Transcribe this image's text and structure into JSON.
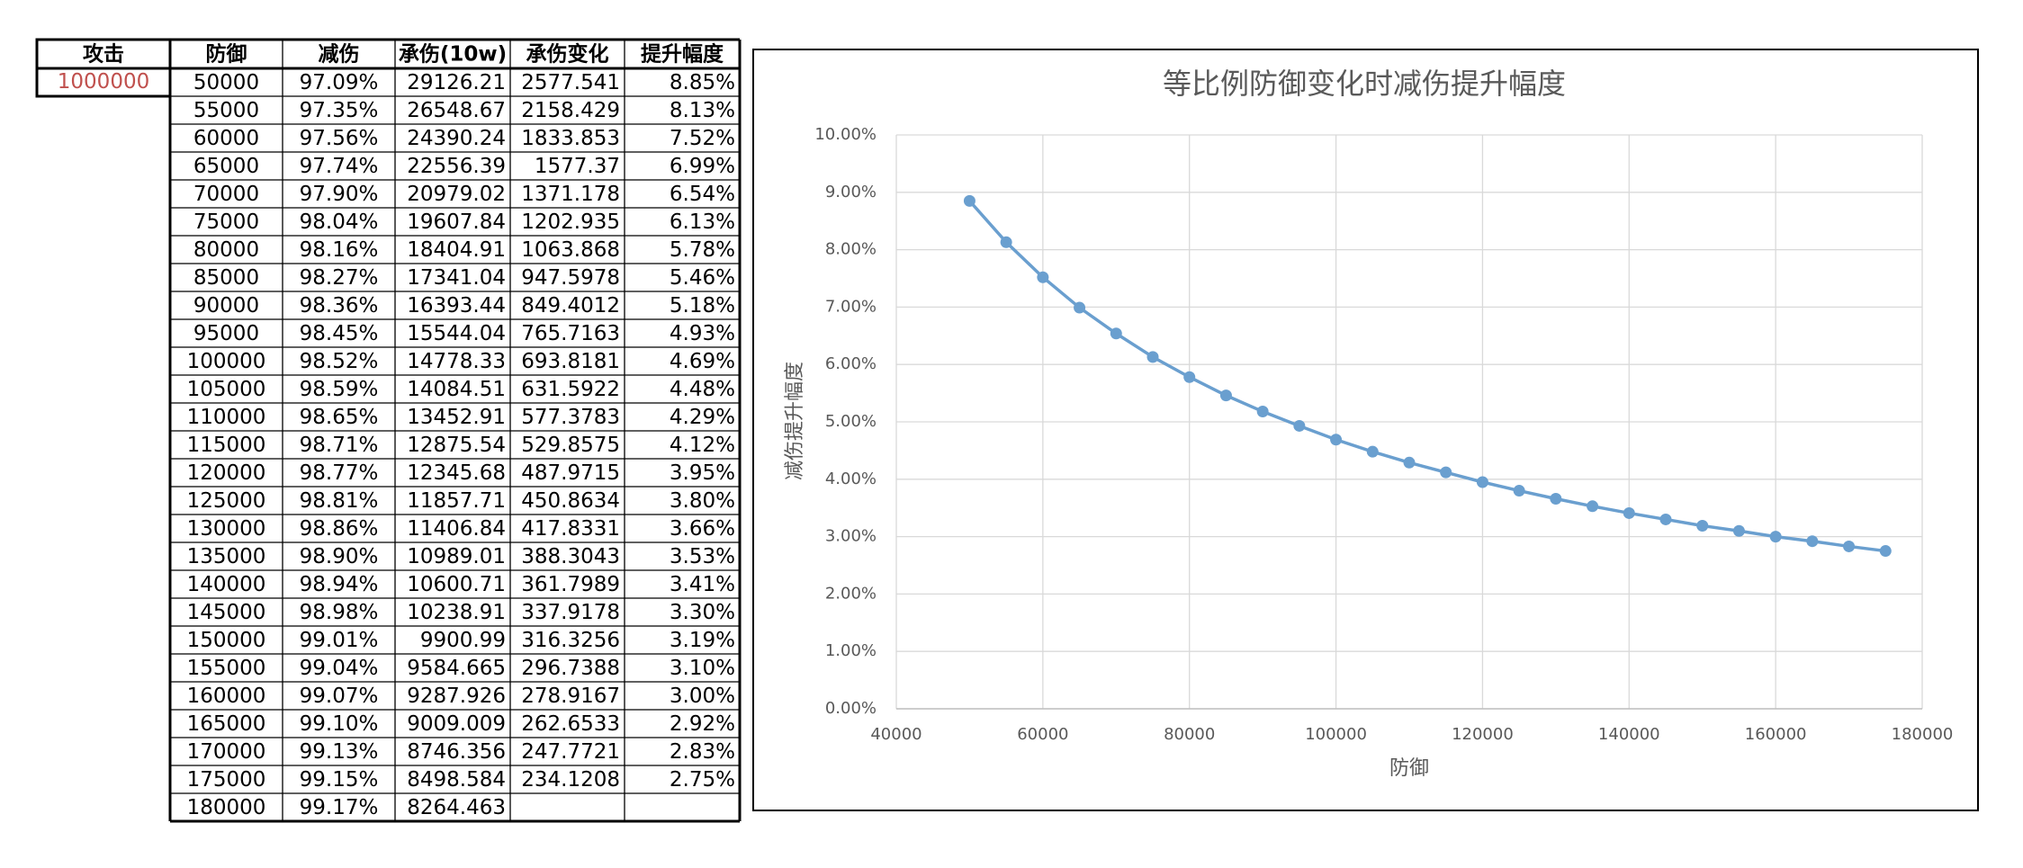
{
  "table": {
    "header": [
      "攻击",
      "防御",
      "减伤",
      "承伤(10w)",
      "承伤变化",
      "提升幅度"
    ],
    "attack": "1000000",
    "rows": [
      [
        "50000",
        "97.09%",
        "29126.21",
        "2577.541",
        "8.85%"
      ],
      [
        "55000",
        "97.35%",
        "26548.67",
        "2158.429",
        "8.13%"
      ],
      [
        "60000",
        "97.56%",
        "24390.24",
        "1833.853",
        "7.52%"
      ],
      [
        "65000",
        "97.74%",
        "22556.39",
        "1577.37",
        "6.99%"
      ],
      [
        "70000",
        "97.90%",
        "20979.02",
        "1371.178",
        "6.54%"
      ],
      [
        "75000",
        "98.04%",
        "19607.84",
        "1202.935",
        "6.13%"
      ],
      [
        "80000",
        "98.16%",
        "18404.91",
        "1063.868",
        "5.78%"
      ],
      [
        "85000",
        "98.27%",
        "17341.04",
        "947.5978",
        "5.46%"
      ],
      [
        "90000",
        "98.36%",
        "16393.44",
        "849.4012",
        "5.18%"
      ],
      [
        "95000",
        "98.45%",
        "15544.04",
        "765.7163",
        "4.93%"
      ],
      [
        "100000",
        "98.52%",
        "14778.33",
        "693.8181",
        "4.69%"
      ],
      [
        "105000",
        "98.59%",
        "14084.51",
        "631.5922",
        "4.48%"
      ],
      [
        "110000",
        "98.65%",
        "13452.91",
        "577.3783",
        "4.29%"
      ],
      [
        "115000",
        "98.71%",
        "12875.54",
        "529.8575",
        "4.12%"
      ],
      [
        "120000",
        "98.77%",
        "12345.68",
        "487.9715",
        "3.95%"
      ],
      [
        "125000",
        "98.81%",
        "11857.71",
        "450.8634",
        "3.80%"
      ],
      [
        "130000",
        "98.86%",
        "11406.84",
        "417.8331",
        "3.66%"
      ],
      [
        "135000",
        "98.90%",
        "10989.01",
        "388.3043",
        "3.53%"
      ],
      [
        "140000",
        "98.94%",
        "10600.71",
        "361.7989",
        "3.41%"
      ],
      [
        "145000",
        "98.98%",
        "10238.91",
        "337.9178",
        "3.30%"
      ],
      [
        "150000",
        "99.01%",
        "9900.99",
        "316.3256",
        "3.19%"
      ],
      [
        "155000",
        "99.04%",
        "9584.665",
        "296.7388",
        "3.10%"
      ],
      [
        "160000",
        "99.07%",
        "9287.926",
        "278.9167",
        "3.00%"
      ],
      [
        "165000",
        "99.10%",
        "9009.009",
        "262.6533",
        "2.92%"
      ],
      [
        "170000",
        "99.13%",
        "8746.356",
        "247.7721",
        "2.83%"
      ],
      [
        "175000",
        "99.15%",
        "8498.584",
        "234.1208",
        "2.75%"
      ],
      [
        "180000",
        "99.17%",
        "8264.463"
      ]
    ]
  },
  "chart_data": {
    "type": "line",
    "title": "等比例防御变化时减伤提升幅度",
    "x_label": "防御",
    "y_label": "减伤提升幅度",
    "x": [
      50000,
      55000,
      60000,
      65000,
      70000,
      75000,
      80000,
      85000,
      90000,
      95000,
      100000,
      105000,
      110000,
      115000,
      120000,
      125000,
      130000,
      135000,
      140000,
      145000,
      150000,
      155000,
      160000,
      165000,
      170000,
      175000
    ],
    "values": [
      8.85,
      8.13,
      7.52,
      6.99,
      6.54,
      6.13,
      5.78,
      5.46,
      5.18,
      4.93,
      4.69,
      4.48,
      4.29,
      4.12,
      3.95,
      3.8,
      3.66,
      3.53,
      3.41,
      3.3,
      3.19,
      3.1,
      3.0,
      2.92,
      2.83,
      2.75
    ],
    "color": "#6a9fcf",
    "xlim": [
      40000,
      180000
    ],
    "xticks": [
      40000,
      60000,
      80000,
      100000,
      120000,
      140000,
      160000,
      180000
    ],
    "ylim": [
      0,
      10
    ],
    "yticks": [
      {
        "value": 0,
        "label": "0.00%"
      },
      {
        "value": 1,
        "label": "1.00%"
      },
      {
        "value": 2,
        "label": "2.00%"
      },
      {
        "value": 3,
        "label": "3.00%"
      },
      {
        "value": 4,
        "label": "4.00%"
      },
      {
        "value": 5,
        "label": "5.00%"
      },
      {
        "value": 6,
        "label": "6.00%"
      },
      {
        "value": 7,
        "label": "7.00%"
      },
      {
        "value": 8,
        "label": "8.00%"
      },
      {
        "value": 9,
        "label": "9.00%"
      },
      {
        "value": 10,
        "label": "10.00%"
      }
    ],
    "grid": true
  }
}
